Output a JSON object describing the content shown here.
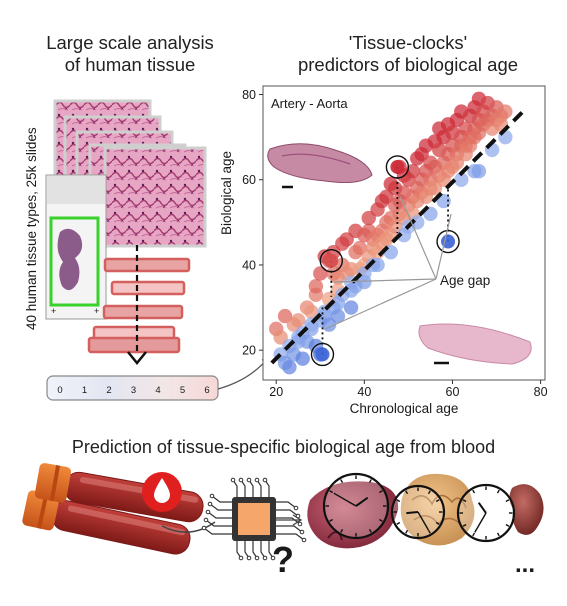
{
  "left_panel": {
    "title_line1": "Large scale analysis",
    "title_line2": "of human tissue",
    "side_label": "40 human tissue types, 25k slides",
    "embedding_values": [
      "0",
      "1",
      "2",
      "3",
      "4",
      "5",
      "6"
    ]
  },
  "right_panel": {
    "title_line1": "'Tissue-clocks'",
    "title_line2": "predictors of biological age"
  },
  "bottom_panel": {
    "title": "Prediction of tissue-specific biological age from blood",
    "question_mark": "?",
    "ellipsis": "..."
  },
  "colors": {
    "older_points": "#cc2a36",
    "younger_points": "#3b62d6",
    "diagonal": "#111111",
    "slide_frame_green": "#39d12c",
    "bar_outline": "#e07070"
  },
  "icons": [
    "blood-tube-icon",
    "blood-drop-icon",
    "chip-icon",
    "organ-liver-icon",
    "organ-brain-icon",
    "organ-kidney-icon",
    "clock-icon"
  ],
  "chart_data": {
    "type": "scatter",
    "title": "Artery - Aorta",
    "xlabel": "Chronological age",
    "ylabel": "Biological age",
    "xlim": [
      17,
      81
    ],
    "ylim": [
      13,
      82
    ],
    "xticks": [
      20,
      40,
      60,
      80
    ],
    "yticks": [
      20,
      40,
      60,
      80
    ],
    "grid": false,
    "identity_line": true,
    "annotation": "Age gap",
    "highlighted": [
      {
        "x": 32.5,
        "y": 41,
        "chrono": 32.5
      },
      {
        "x": 30.5,
        "y": 19,
        "chrono": 30.5
      },
      {
        "x": 47.5,
        "y": 63,
        "chrono": 47.5
      },
      {
        "x": 59,
        "y": 45.5,
        "chrono": 59
      }
    ],
    "points": [
      [
        20,
        25
      ],
      [
        21,
        19
      ],
      [
        21,
        23
      ],
      [
        22,
        17
      ],
      [
        22,
        28
      ],
      [
        23,
        21
      ],
      [
        23,
        16
      ],
      [
        24,
        26
      ],
      [
        24,
        19
      ],
      [
        25,
        27
      ],
      [
        25,
        23
      ],
      [
        26,
        24
      ],
      [
        26,
        18
      ],
      [
        27,
        30
      ],
      [
        27,
        22
      ],
      [
        28,
        29
      ],
      [
        28,
        25
      ],
      [
        29,
        33
      ],
      [
        29,
        21
      ],
      [
        29,
        35
      ],
      [
        30,
        38
      ],
      [
        30,
        27
      ],
      [
        30,
        19
      ],
      [
        31,
        28
      ],
      [
        31,
        42
      ],
      [
        32,
        41
      ],
      [
        32,
        32
      ],
      [
        32,
        26
      ],
      [
        33,
        38
      ],
      [
        33,
        30
      ],
      [
        33,
        43
      ],
      [
        34,
        37
      ],
      [
        34,
        34
      ],
      [
        34,
        28
      ],
      [
        35,
        40
      ],
      [
        35,
        33
      ],
      [
        35,
        45
      ],
      [
        36,
        46
      ],
      [
        36,
        38
      ],
      [
        37,
        36
      ],
      [
        37,
        39
      ],
      [
        37,
        30
      ],
      [
        38,
        48
      ],
      [
        38,
        43
      ],
      [
        38,
        35
      ],
      [
        39,
        44
      ],
      [
        39,
        39
      ],
      [
        40,
        47
      ],
      [
        40,
        40
      ],
      [
        40,
        36
      ],
      [
        41,
        42
      ],
      [
        41,
        48
      ],
      [
        41,
        51
      ],
      [
        42,
        46
      ],
      [
        42,
        44
      ],
      [
        42,
        40
      ],
      [
        43,
        53
      ],
      [
        43,
        47
      ],
      [
        43,
        43
      ],
      [
        44,
        48
      ],
      [
        44,
        45
      ],
      [
        44,
        55
      ],
      [
        45,
        56
      ],
      [
        45,
        50
      ],
      [
        45,
        46
      ],
      [
        46,
        51
      ],
      [
        46,
        47
      ],
      [
        46,
        59
      ],
      [
        47,
        58
      ],
      [
        47,
        54
      ],
      [
        47,
        49
      ],
      [
        48,
        63
      ],
      [
        48,
        55
      ],
      [
        48,
        52
      ],
      [
        49,
        57
      ],
      [
        49,
        51
      ],
      [
        49,
        61
      ],
      [
        50,
        60
      ],
      [
        50,
        54
      ],
      [
        50,
        49
      ],
      [
        51,
        62
      ],
      [
        51,
        56
      ],
      [
        51,
        52
      ],
      [
        52,
        65
      ],
      [
        52,
        58
      ],
      [
        52,
        55
      ],
      [
        53,
        60
      ],
      [
        53,
        57
      ],
      [
        53,
        66
      ],
      [
        54,
        68
      ],
      [
        54,
        62
      ],
      [
        54,
        56
      ],
      [
        55,
        64
      ],
      [
        55,
        60
      ],
      [
        55,
        58
      ],
      [
        56,
        69
      ],
      [
        56,
        63
      ],
      [
        56,
        58
      ],
      [
        57,
        67
      ],
      [
        57,
        61
      ],
      [
        57,
        72
      ],
      [
        58,
        70
      ],
      [
        58,
        64
      ],
      [
        58,
        60
      ],
      [
        59,
        66
      ],
      [
        59,
        62
      ],
      [
        59,
        73
      ],
      [
        60,
        71
      ],
      [
        60,
        68
      ],
      [
        60,
        63
      ],
      [
        61,
        74
      ],
      [
        61,
        66
      ],
      [
        61,
        64
      ],
      [
        62,
        70
      ],
      [
        62,
        68
      ],
      [
        62,
        76
      ],
      [
        63,
        72
      ],
      [
        63,
        68
      ],
      [
        63,
        66
      ],
      [
        64,
        75
      ],
      [
        64,
        70
      ],
      [
        64,
        68
      ],
      [
        65,
        77
      ],
      [
        65,
        72
      ],
      [
        65,
        70
      ],
      [
        66,
        74
      ],
      [
        66,
        71
      ],
      [
        66,
        79
      ],
      [
        67,
        76
      ],
      [
        67,
        73
      ],
      [
        68,
        78
      ],
      [
        68,
        74
      ],
      [
        69,
        75
      ],
      [
        69,
        72
      ],
      [
        70,
        77
      ],
      [
        70,
        74
      ],
      [
        71,
        75
      ],
      [
        71,
        73
      ],
      [
        72,
        76
      ],
      [
        65,
        62
      ],
      [
        62,
        60
      ],
      [
        58,
        55
      ],
      [
        55,
        52
      ],
      [
        52,
        50
      ],
      [
        49,
        47
      ],
      [
        46,
        43
      ],
      [
        43,
        40
      ],
      [
        40,
        38
      ],
      [
        37,
        34
      ],
      [
        34,
        31
      ],
      [
        31,
        29
      ],
      [
        28,
        26
      ],
      [
        25,
        22
      ],
      [
        66,
        62
      ],
      [
        69,
        67
      ],
      [
        72,
        70
      ]
    ]
  }
}
